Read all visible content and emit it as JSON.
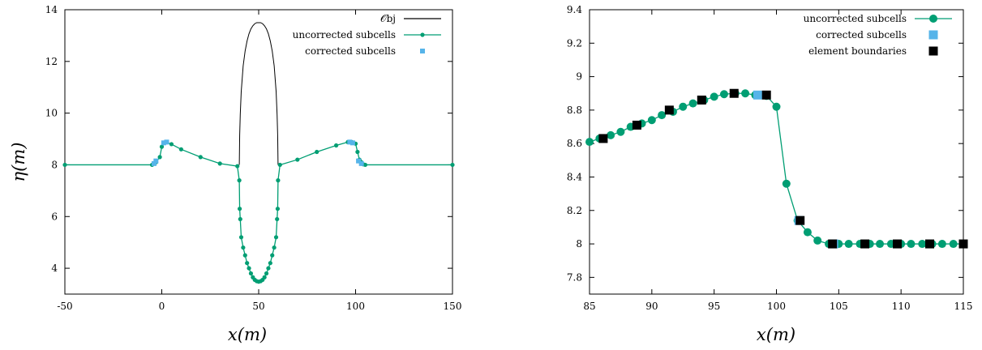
{
  "colors": {
    "uncorrected": "#009e73",
    "corrected": "#56b4e9",
    "boundaries": "#000000",
    "obstacle": "#000000"
  },
  "chart_data": [
    {
      "type": "line",
      "xlabel": "x(m)",
      "ylabel": "η(m)",
      "xlim": [
        -50,
        150
      ],
      "ylim": [
        3,
        14
      ],
      "xticks": [
        "-50",
        "0",
        "50",
        "100",
        "150"
      ],
      "yticks": [
        "4",
        "6",
        "8",
        "10",
        "12",
        "14"
      ],
      "legend_position": "top-right",
      "series": [
        {
          "name": "𝒪bj",
          "style": "line",
          "x": [
            40,
            40.2,
            40.5,
            41,
            42,
            43,
            44,
            45,
            46,
            47,
            48,
            49,
            50,
            51,
            52,
            53,
            54,
            55,
            56,
            57,
            58,
            59,
            59.5,
            59.8,
            60
          ],
          "y": [
            8.0,
            9.15,
            9.95,
            10.84,
            11.83,
            12.4,
            12.79,
            13.07,
            13.26,
            13.38,
            13.46,
            13.5,
            13.5,
            13.5,
            13.46,
            13.38,
            13.26,
            13.07,
            12.79,
            12.4,
            11.83,
            10.84,
            9.95,
            9.15,
            8.0
          ]
        },
        {
          "name": "uncorrected subcells",
          "style": "line-points",
          "x": [
            -50,
            -5,
            -3,
            -1,
            0,
            2,
            5,
            10,
            20,
            30,
            39,
            40,
            40.2,
            40.5,
            41,
            42,
            43,
            44,
            45,
            46,
            47,
            48,
            49,
            50,
            51,
            52,
            53,
            54,
            55,
            56,
            57,
            58,
            59,
            59.5,
            59.8,
            60,
            61,
            70,
            80,
            90,
            96,
            98,
            100,
            101,
            102,
            103,
            104,
            105,
            150
          ],
          "y": [
            8.0,
            8.0,
            8.1,
            8.3,
            8.7,
            8.88,
            8.8,
            8.6,
            8.3,
            8.05,
            7.95,
            7.4,
            6.3,
            5.9,
            5.2,
            4.8,
            4.5,
            4.2,
            4.0,
            3.8,
            3.65,
            3.55,
            3.5,
            3.48,
            3.5,
            3.55,
            3.65,
            3.8,
            4.0,
            4.2,
            4.5,
            4.8,
            5.2,
            5.9,
            6.3,
            7.4,
            8.0,
            8.2,
            8.5,
            8.75,
            8.88,
            8.88,
            8.82,
            8.5,
            8.2,
            8.1,
            8.02,
            8.0,
            8.0
          ]
        },
        {
          "name": "corrected subcells",
          "style": "points",
          "x": [
            -4,
            -3,
            1,
            2.5,
            97,
            98.5,
            101.5,
            103
          ],
          "y": [
            8.05,
            8.15,
            8.85,
            8.88,
            8.88,
            8.85,
            8.15,
            8.05
          ]
        }
      ]
    },
    {
      "type": "line",
      "xlabel": "x(m)",
      "ylabel": "",
      "xlim": [
        85,
        115
      ],
      "ylim": [
        7.7,
        9.4
      ],
      "xticks": [
        "85",
        "90",
        "95",
        "100",
        "105",
        "110",
        "115"
      ],
      "yticks": [
        "7.8",
        "8",
        "8.2",
        "8.4",
        "8.6",
        "8.8",
        "9",
        "9.2",
        "9.4"
      ],
      "legend_position": "top-right",
      "series": [
        {
          "name": "uncorrected subcells",
          "style": "line-points",
          "x": [
            85.0,
            85.8,
            86.7,
            87.5,
            88.3,
            89.2,
            90.0,
            90.8,
            91.7,
            92.5,
            93.3,
            94.2,
            95.0,
            95.8,
            96.7,
            97.5,
            98.3,
            99.2,
            100.0,
            100.8,
            101.7,
            102.5,
            103.3,
            104.2,
            105.0,
            105.8,
            106.7,
            107.5,
            108.3,
            109.2,
            110.0,
            110.8,
            111.7,
            112.5,
            113.3,
            114.2,
            115.0
          ],
          "y": [
            8.61,
            8.63,
            8.65,
            8.67,
            8.7,
            8.72,
            8.74,
            8.77,
            8.79,
            8.82,
            8.84,
            8.86,
            8.88,
            8.895,
            8.9,
            8.9,
            8.89,
            8.885,
            8.82,
            8.36,
            8.14,
            8.07,
            8.02,
            8.0,
            8.0,
            8.0,
            8.0,
            8.0,
            8.0,
            8.0,
            8.0,
            8.0,
            8.0,
            8.0,
            8.0,
            8.0,
            8.0
          ]
        },
        {
          "name": "corrected subcells",
          "style": "squares",
          "x": [
            98.5,
            101.8,
            104.6
          ],
          "y": [
            8.89,
            8.14,
            8.0
          ]
        },
        {
          "name": "element boundaries",
          "style": "squares",
          "x": [
            86.1,
            88.8,
            91.4,
            94.0,
            96.6,
            99.2,
            101.9,
            104.5,
            107.1,
            109.7,
            112.3,
            115.0
          ],
          "y": [
            8.63,
            8.71,
            8.8,
            8.86,
            8.9,
            8.89,
            8.14,
            8.0,
            8.0,
            8.0,
            8.0,
            8.0
          ]
        }
      ]
    }
  ]
}
